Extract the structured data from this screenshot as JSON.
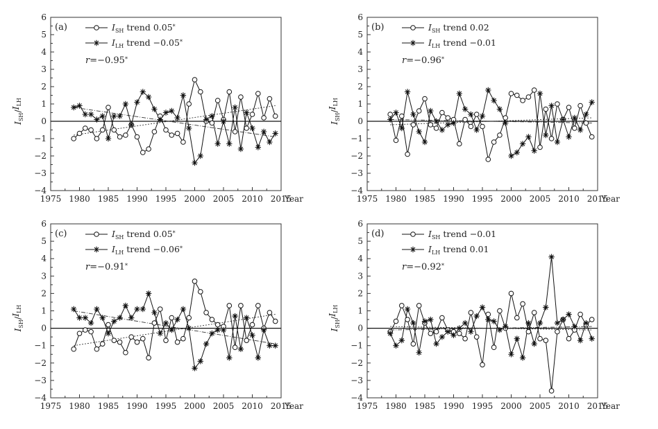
{
  "chart_data": [
    {
      "type": "line",
      "panel": "(a)",
      "x": [
        1979,
        1980,
        1981,
        1982,
        1983,
        1984,
        1985,
        1986,
        1987,
        1988,
        1989,
        1990,
        1991,
        1992,
        1993,
        1994,
        1995,
        1996,
        1997,
        1998,
        1999,
        2000,
        2001,
        2002,
        2003,
        2004,
        2005,
        2006,
        2007,
        2008,
        2009,
        2010,
        2011,
        2012,
        2013,
        2014
      ],
      "series": [
        {
          "name": "I_SH",
          "marker": "circle",
          "values": [
            -1.0,
            -0.7,
            -0.4,
            -0.5,
            -1.0,
            -0.5,
            0.8,
            -0.5,
            -0.9,
            -0.8,
            -0.2,
            -0.9,
            -1.8,
            -1.6,
            -0.6,
            0.3,
            -0.5,
            -0.8,
            -0.7,
            -1.2,
            1.0,
            2.4,
            1.7,
            0.0,
            -0.1,
            1.2,
            0.1,
            1.7,
            -0.6,
            1.4,
            -0.4,
            0.4,
            1.6,
            0.2,
            1.3,
            0.3
          ],
          "trend": 0.05,
          "sig": "*",
          "trend_line": [
            -0.8,
            0.9
          ]
        },
        {
          "name": "I_LH",
          "marker": "star",
          "values": [
            0.8,
            0.9,
            0.4,
            0.4,
            0.1,
            0.3,
            -1.0,
            0.3,
            0.3,
            1.0,
            -0.2,
            1.1,
            1.7,
            1.4,
            0.7,
            0.1,
            0.5,
            0.6,
            0.2,
            1.5,
            -0.4,
            -2.4,
            -2.0,
            0.1,
            0.3,
            -1.3,
            0.0,
            -1.3,
            0.8,
            -1.6,
            0.5,
            -0.4,
            -1.5,
            -0.6,
            -1.2,
            -0.7
          ],
          "trend": -0.05,
          "sig": "*",
          "trend_line": [
            0.8,
            -0.9
          ]
        }
      ],
      "r": -0.95,
      "r_sig": "*",
      "xlabel": "Year",
      "ylabel": "I_SH/I_LH",
      "xlim": [
        1975,
        2015
      ],
      "ylim": [
        -4,
        6
      ],
      "xticks": [
        1975,
        1980,
        1985,
        1990,
        1995,
        2000,
        2005,
        2010,
        2015
      ],
      "yticks": [
        -4,
        -3,
        -2,
        -1,
        0,
        1,
        2,
        3,
        4,
        5,
        6
      ]
    },
    {
      "type": "line",
      "panel": "(b)",
      "x": [
        1979,
        1980,
        1981,
        1982,
        1983,
        1984,
        1985,
        1986,
        1987,
        1988,
        1989,
        1990,
        1991,
        1992,
        1993,
        1994,
        1995,
        1996,
        1997,
        1998,
        1999,
        2000,
        2001,
        2002,
        2003,
        2004,
        2005,
        2006,
        2007,
        2008,
        2009,
        2010,
        2011,
        2012,
        2013,
        2014
      ],
      "series": [
        {
          "name": "I_SH",
          "marker": "circle",
          "values": [
            0.4,
            -1.1,
            0.3,
            -1.9,
            -0.2,
            0.6,
            1.3,
            -0.2,
            -0.4,
            0.5,
            0.2,
            0.1,
            -1.3,
            0.1,
            -0.3,
            0.4,
            -0.3,
            -2.2,
            -1.2,
            -0.8,
            0.2,
            1.6,
            1.5,
            1.2,
            1.4,
            1.8,
            -1.5,
            0.7,
            -1.0,
            1.0,
            0.1,
            0.8,
            -0.4,
            0.9,
            -0.1,
            -0.9
          ],
          "trend": 0.02,
          "sig": "",
          "trend_line": [
            -0.2,
            0.2
          ]
        },
        {
          "name": "I_LH",
          "marker": "star",
          "values": [
            0.1,
            0.5,
            -0.4,
            1.7,
            0.4,
            -0.6,
            -1.2,
            0.6,
            0.0,
            -0.5,
            -0.2,
            -0.1,
            1.6,
            0.7,
            0.4,
            -0.5,
            0.3,
            1.8,
            1.2,
            0.7,
            -0.1,
            -2.0,
            -1.8,
            -1.3,
            -0.9,
            -1.7,
            1.6,
            -0.8,
            0.9,
            -1.2,
            0.1,
            -0.9,
            0.2,
            -0.5,
            0.4,
            1.1
          ],
          "trend": -0.01,
          "sig": "",
          "trend_line": [
            0.1,
            -0.1
          ]
        }
      ],
      "r": -0.96,
      "r_sig": "*",
      "xlabel": "Year",
      "ylabel": "I_SH/I_LH",
      "xlim": [
        1975,
        2015
      ],
      "ylim": [
        -4,
        6
      ],
      "xticks": [
        1975,
        1980,
        1985,
        1990,
        1995,
        2000,
        2005,
        2010,
        2015
      ],
      "yticks": [
        -4,
        -3,
        -2,
        -1,
        0,
        1,
        2,
        3,
        4,
        5,
        6
      ]
    },
    {
      "type": "line",
      "panel": "(c)",
      "x": [
        1979,
        1980,
        1981,
        1982,
        1983,
        1984,
        1985,
        1986,
        1987,
        1988,
        1989,
        1990,
        1991,
        1992,
        1993,
        1994,
        1995,
        1996,
        1997,
        1998,
        1999,
        2000,
        2001,
        2002,
        2003,
        2004,
        2005,
        2006,
        2007,
        2008,
        2009,
        2010,
        2011,
        2012,
        2013,
        2014
      ],
      "series": [
        {
          "name": "I_SH",
          "marker": "circle",
          "values": [
            -1.2,
            -0.3,
            -0.1,
            -0.2,
            -1.2,
            -0.9,
            0.2,
            -0.7,
            -0.8,
            -1.4,
            -0.5,
            -0.8,
            -0.6,
            -1.7,
            0.3,
            1.1,
            -0.7,
            0.6,
            -0.8,
            -0.6,
            0.6,
            2.7,
            2.1,
            0.9,
            0.5,
            0.2,
            0.1,
            1.3,
            -1.1,
            1.3,
            -0.7,
            0.2,
            1.3,
            0.0,
            0.9,
            0.4
          ],
          "trend": 0.05,
          "sig": "*",
          "trend_line": [
            -1.0,
            0.8
          ]
        },
        {
          "name": "I_LH",
          "marker": "star",
          "values": [
            1.1,
            0.6,
            0.6,
            0.3,
            1.1,
            0.6,
            -0.3,
            0.4,
            0.6,
            1.3,
            0.6,
            1.1,
            1.1,
            2.0,
            0.9,
            -0.3,
            0.3,
            -0.1,
            0.5,
            1.1,
            0.0,
            -2.3,
            -1.9,
            -0.9,
            -0.3,
            -0.1,
            -0.1,
            -1.7,
            0.7,
            -1.2,
            0.6,
            -0.4,
            -1.7,
            -0.1,
            -1.0,
            -1.0
          ],
          "trend": -0.06,
          "sig": "*",
          "trend_line": [
            1.0,
            -0.9
          ]
        }
      ],
      "r": -0.91,
      "r_sig": "*",
      "xlabel": "Year",
      "ylabel": "I_SH/I_LH",
      "xlim": [
        1975,
        2015
      ],
      "ylim": [
        -4,
        6
      ],
      "xticks": [
        1975,
        1980,
        1985,
        1990,
        1995,
        2000,
        2005,
        2010,
        2015
      ],
      "yticks": [
        -4,
        -3,
        -2,
        -1,
        0,
        1,
        2,
        3,
        4,
        5,
        6
      ]
    },
    {
      "type": "line",
      "panel": "(d)",
      "x": [
        1979,
        1980,
        1981,
        1982,
        1983,
        1984,
        1985,
        1986,
        1987,
        1988,
        1989,
        1990,
        1991,
        1992,
        1993,
        1994,
        1995,
        1996,
        1997,
        1998,
        1999,
        2000,
        2001,
        2002,
        2003,
        2004,
        2005,
        2006,
        2007,
        2008,
        2009,
        2010,
        2011,
        2012,
        2013,
        2014
      ],
      "series": [
        {
          "name": "I_SH",
          "marker": "circle",
          "values": [
            -0.2,
            0.4,
            1.3,
            0.5,
            -0.9,
            1.3,
            0.3,
            -0.3,
            -0.2,
            0.6,
            -0.1,
            -0.2,
            -0.3,
            -0.6,
            0.9,
            -0.5,
            -2.1,
            0.8,
            -1.1,
            1.0,
            0.0,
            2.0,
            0.6,
            1.4,
            -0.2,
            0.9,
            -0.6,
            -0.7,
            -3.6,
            -0.2,
            0.5,
            -0.6,
            -0.1,
            0.8,
            0.2,
            0.5
          ],
          "trend": -0.01,
          "sig": "",
          "trend_line": [
            0.1,
            -0.1
          ]
        },
        {
          "name": "I_LH",
          "marker": "star",
          "values": [
            -0.3,
            -1.0,
            -0.7,
            1.1,
            0.3,
            -1.4,
            0.4,
            0.5,
            -0.9,
            -0.5,
            -0.2,
            -0.4,
            0.0,
            0.3,
            -0.2,
            0.7,
            1.2,
            0.5,
            0.4,
            -0.1,
            0.1,
            -1.5,
            -0.6,
            -1.7,
            0.3,
            -0.9,
            0.3,
            1.2,
            4.1,
            0.3,
            0.5,
            0.8,
            0.1,
            -0.7,
            0.3,
            -0.6
          ],
          "trend": 0.01,
          "sig": "",
          "trend_line": [
            -0.1,
            0.1
          ]
        }
      ],
      "r": -0.92,
      "r_sig": "*",
      "xlabel": "Year",
      "ylabel": "I_SH/I_LH",
      "xlim": [
        1975,
        2015
      ],
      "ylim": [
        -4,
        6
      ],
      "xticks": [
        1975,
        1980,
        1985,
        1990,
        1995,
        2000,
        2005,
        2010,
        2015
      ],
      "yticks": [
        -4,
        -3,
        -2,
        -1,
        0,
        1,
        2,
        3,
        4,
        5,
        6
      ]
    }
  ],
  "labels": {
    "sh_base": "I",
    "sh_sub": "SH",
    "lh_base": "I",
    "lh_sub": "LH",
    "trend_word": "trend",
    "r_symbol": "r",
    "year": "Year",
    "ylabel_sep": "/"
  },
  "colors": {
    "line": "#111111",
    "background": "#ffffff"
  }
}
